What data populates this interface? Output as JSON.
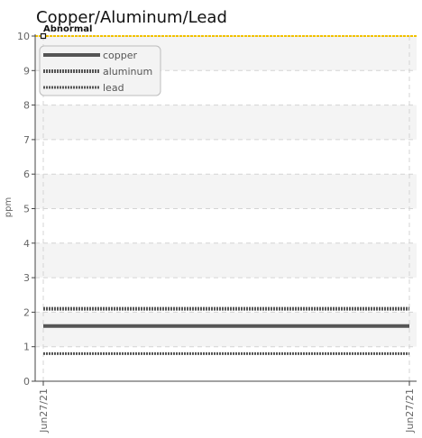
{
  "chart_data": {
    "type": "line",
    "title": "Copper/Aluminum/Lead",
    "xlabel": "",
    "ylabel": "ppm",
    "x": [
      "Jun27/21",
      "Jun27/21"
    ],
    "ylim": [
      0,
      10
    ],
    "yticks": [
      "0",
      "1",
      "2",
      "3",
      "4",
      "5",
      "6",
      "7",
      "8",
      "9",
      "10"
    ],
    "grid": true,
    "legend_placement": "top-left",
    "series": [
      {
        "name": "copper",
        "values": [
          1.6,
          1.6
        ],
        "color": "#555555",
        "style": "solid"
      },
      {
        "name": "aluminum",
        "values": [
          2.1,
          2.1
        ],
        "color": "#555555",
        "style": "dotted-thick"
      },
      {
        "name": "lead",
        "values": [
          0.8,
          0.8
        ],
        "color": "#555555",
        "style": "dotted-thin"
      }
    ],
    "threshold": {
      "label": "Abnormal",
      "value": 10,
      "color": "#f2c200"
    }
  }
}
